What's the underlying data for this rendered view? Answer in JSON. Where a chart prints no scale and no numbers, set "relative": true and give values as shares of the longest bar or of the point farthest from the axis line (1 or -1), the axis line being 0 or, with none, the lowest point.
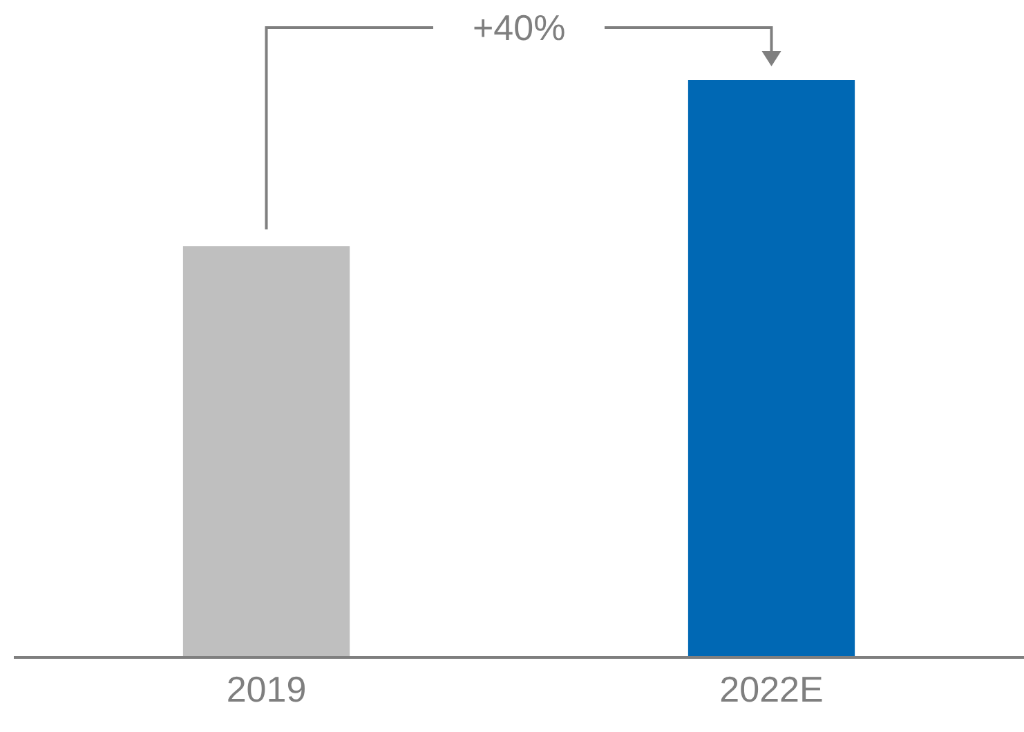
{
  "chart_data": {
    "type": "bar",
    "relative": true,
    "categories": [
      "2019",
      "2022E"
    ],
    "values": [
      0.712,
      1
    ],
    "colors": [
      "#bfbfbf",
      "#0068b4"
    ],
    "annotations": [
      "+40%"
    ]
  }
}
